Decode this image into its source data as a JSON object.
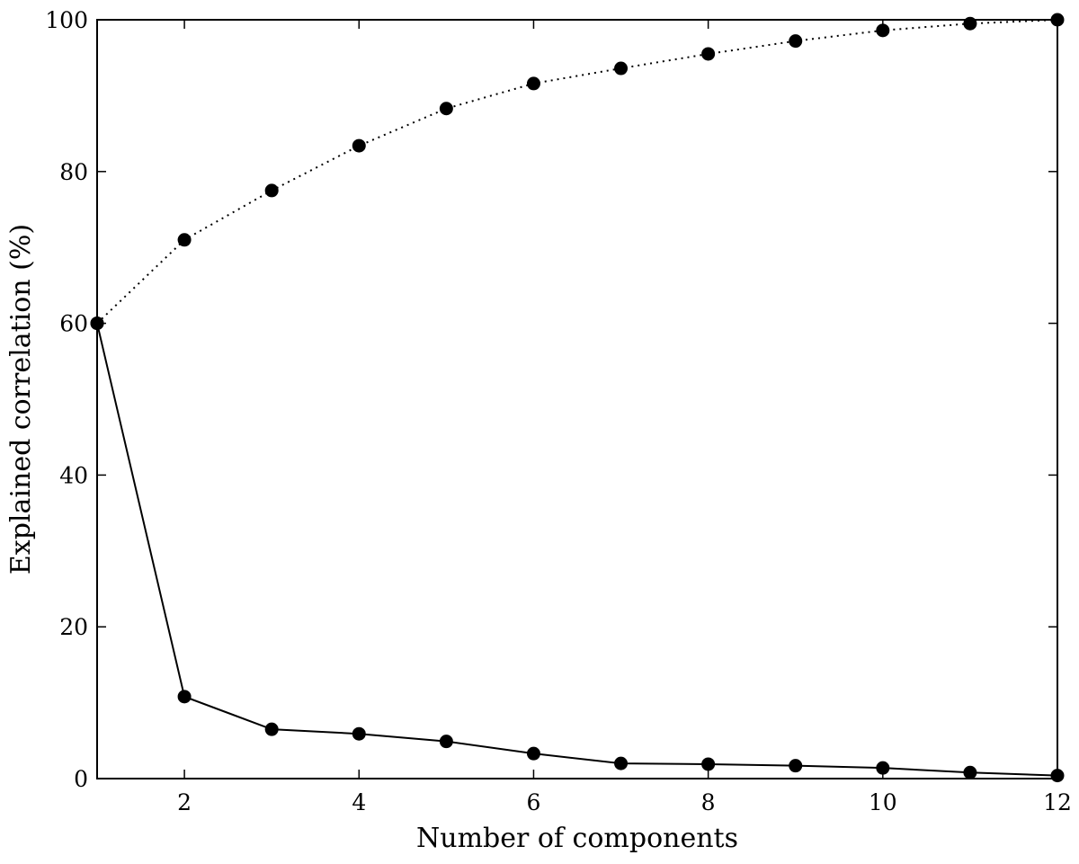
{
  "chart_data": {
    "type": "line",
    "title": "",
    "xlabel": "Number of components",
    "ylabel": "Explained correlation (%)",
    "xlim": [
      1,
      12
    ],
    "ylim": [
      0,
      100
    ],
    "xticks": [
      2,
      4,
      6,
      8,
      10,
      12
    ],
    "yticks": [
      0,
      20,
      40,
      60,
      80,
      100
    ],
    "grid": false,
    "legend": "none",
    "x": [
      1,
      2,
      3,
      4,
      5,
      6,
      7,
      8,
      9,
      10,
      11,
      12
    ],
    "series": [
      {
        "line_style": "solid",
        "marker": "circle",
        "color": "#000000",
        "values": [
          60.0,
          10.8,
          6.5,
          5.9,
          4.9,
          3.3,
          2.0,
          1.9,
          1.7,
          1.4,
          0.8,
          0.4
        ]
      },
      {
        "line_style": "dotted",
        "marker": "circle",
        "color": "#000000",
        "values": [
          60.0,
          71.0,
          77.5,
          83.4,
          88.3,
          91.6,
          93.6,
          95.5,
          97.2,
          98.6,
          99.5,
          100.0
        ]
      }
    ]
  }
}
